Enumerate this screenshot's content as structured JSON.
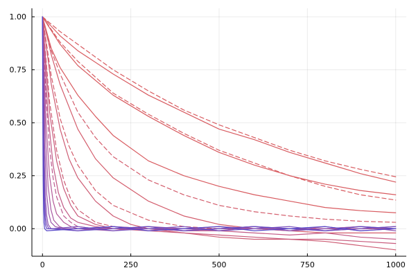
{
  "chart_data": {
    "type": "line",
    "title": "",
    "xlabel": "",
    "ylabel": "",
    "xlim": [
      -30,
      1030
    ],
    "ylim": [
      -0.13,
      1.04
    ],
    "grid": true,
    "legend": "none",
    "x_ticks": [
      0,
      250,
      500,
      750,
      1000
    ],
    "x_tick_labels": [
      "0",
      "250",
      "500",
      "750",
      "1000"
    ],
    "y_ticks": [
      0.0,
      0.25,
      0.5,
      0.75,
      1.0
    ],
    "y_tick_labels": [
      "0.00",
      "0.25",
      "0.50",
      "0.75",
      "1.00"
    ],
    "series": [
      {
        "color": "#d85a5f",
        "dash": true,
        "x": [
          0,
          50,
          100,
          200,
          300,
          400,
          500,
          600,
          700,
          800,
          900,
          1000
        ],
        "y": [
          1.0,
          0.93,
          0.87,
          0.75,
          0.65,
          0.56,
          0.49,
          0.43,
          0.37,
          0.32,
          0.28,
          0.245
        ]
      },
      {
        "color": "#d85a5f",
        "dash": false,
        "x": [
          0,
          50,
          100,
          200,
          300,
          400,
          500,
          600,
          700,
          800,
          900,
          1000
        ],
        "y": [
          1.0,
          0.91,
          0.84,
          0.73,
          0.63,
          0.55,
          0.47,
          0.42,
          0.36,
          0.31,
          0.26,
          0.22
        ]
      },
      {
        "color": "#d85a5f",
        "dash": true,
        "x": [
          0,
          50,
          100,
          200,
          300,
          400,
          500,
          600,
          700,
          800,
          900,
          1000
        ],
        "y": [
          1.0,
          0.88,
          0.79,
          0.64,
          0.54,
          0.45,
          0.37,
          0.31,
          0.25,
          0.2,
          0.16,
          0.135
        ]
      },
      {
        "color": "#d85a5f",
        "dash": false,
        "x": [
          0,
          50,
          100,
          200,
          300,
          400,
          500,
          600,
          700,
          800,
          900,
          1000
        ],
        "y": [
          1.0,
          0.87,
          0.77,
          0.63,
          0.53,
          0.44,
          0.36,
          0.3,
          0.25,
          0.21,
          0.18,
          0.16
        ]
      },
      {
        "color": "#d85a5f",
        "dash": false,
        "x": [
          0,
          25,
          50,
          100,
          150,
          200,
          300,
          400,
          500,
          600,
          700,
          800,
          900,
          1000
        ],
        "y": [
          1.0,
          0.85,
          0.76,
          0.63,
          0.53,
          0.44,
          0.32,
          0.25,
          0.2,
          0.16,
          0.13,
          0.1,
          0.085,
          0.075
        ]
      },
      {
        "color": "#d35c6b",
        "dash": true,
        "x": [
          0,
          25,
          50,
          100,
          150,
          200,
          300,
          400,
          500,
          600,
          700,
          800,
          900,
          1000
        ],
        "y": [
          1.0,
          0.84,
          0.73,
          0.55,
          0.43,
          0.34,
          0.23,
          0.16,
          0.11,
          0.08,
          0.06,
          0.045,
          0.035,
          0.03
        ]
      },
      {
        "color": "#d35c6b",
        "dash": false,
        "x": [
          0,
          25,
          50,
          100,
          150,
          200,
          300,
          400,
          500,
          600,
          700,
          800,
          900,
          1000
        ],
        "y": [
          1.0,
          0.82,
          0.68,
          0.47,
          0.33,
          0.24,
          0.13,
          0.06,
          0.02,
          0.0,
          -0.01,
          -0.02,
          -0.02,
          -0.02
        ]
      },
      {
        "color": "#d35c6b",
        "dash": true,
        "x": [
          0,
          25,
          50,
          75,
          100,
          150,
          200,
          300,
          400,
          500,
          600,
          800,
          1000
        ],
        "y": [
          1.0,
          0.72,
          0.52,
          0.39,
          0.3,
          0.18,
          0.11,
          0.04,
          0.01,
          0.0,
          0.0,
          0.0,
          0.0
        ]
      },
      {
        "color": "#cd5b73",
        "dash": false,
        "x": [
          0,
          25,
          50,
          75,
          100,
          150,
          200,
          250,
          300,
          400,
          500,
          600,
          700,
          800,
          900,
          1000
        ],
        "y": [
          1.0,
          0.68,
          0.47,
          0.33,
          0.24,
          0.13,
          0.06,
          0.02,
          0.0,
          -0.02,
          -0.04,
          -0.05,
          -0.05,
          -0.06,
          -0.08,
          -0.1
        ]
      },
      {
        "color": "#cd5b73",
        "dash": true,
        "x": [
          0,
          20,
          40,
          60,
          80,
          100,
          150,
          200,
          300,
          400,
          600,
          800,
          1000
        ],
        "y": [
          1.0,
          0.6,
          0.37,
          0.23,
          0.14,
          0.09,
          0.03,
          0.01,
          0.0,
          0.0,
          0.0,
          0.0,
          0.0
        ]
      },
      {
        "color": "#c85a7c",
        "dash": false,
        "x": [
          0,
          20,
          40,
          60,
          80,
          100,
          150,
          200,
          300,
          400,
          500,
          600,
          700,
          800,
          900,
          1000
        ],
        "y": [
          1.0,
          0.55,
          0.32,
          0.19,
          0.11,
          0.06,
          0.02,
          0.0,
          -0.01,
          -0.02,
          -0.03,
          -0.04,
          -0.05,
          -0.05,
          -0.06,
          -0.07
        ]
      },
      {
        "color": "#c25a86",
        "dash": false,
        "x": [
          0,
          15,
          30,
          45,
          60,
          80,
          100,
          150,
          200,
          300,
          400,
          500,
          600,
          700,
          800,
          900,
          1000
        ],
        "y": [
          1.0,
          0.55,
          0.3,
          0.17,
          0.1,
          0.05,
          0.03,
          0.01,
          0.0,
          0.0,
          -0.01,
          -0.01,
          -0.02,
          -0.03,
          -0.02,
          -0.04,
          -0.05
        ]
      },
      {
        "color": "#bb5a90",
        "dash": true,
        "x": [
          0,
          10,
          20,
          30,
          40,
          60,
          80,
          100,
          150,
          200,
          400,
          600,
          800,
          1000
        ],
        "y": [
          1.0,
          0.62,
          0.38,
          0.24,
          0.15,
          0.06,
          0.03,
          0.01,
          0.0,
          0.0,
          0.0,
          0.0,
          0.0,
          0.0
        ]
      },
      {
        "color": "#b35a98",
        "dash": false,
        "x": [
          0,
          10,
          20,
          30,
          40,
          60,
          80,
          100,
          200,
          300,
          400,
          500,
          600,
          700,
          800,
          900,
          1000
        ],
        "y": [
          1.0,
          0.5,
          0.25,
          0.13,
          0.07,
          0.03,
          0.01,
          0.0,
          0.0,
          0.01,
          -0.01,
          0.0,
          0.01,
          -0.01,
          0.0,
          0.01,
          0.0
        ]
      },
      {
        "color": "#a858a2",
        "dash": false,
        "x": [
          0,
          8,
          16,
          24,
          32,
          48,
          64,
          100,
          200,
          300,
          400,
          500,
          600,
          700,
          800,
          900,
          1000
        ],
        "y": [
          1.0,
          0.45,
          0.2,
          0.09,
          0.04,
          0.01,
          0.0,
          0.0,
          0.01,
          -0.01,
          0.0,
          0.01,
          0.0,
          -0.01,
          0.01,
          -0.01,
          0.0
        ]
      },
      {
        "color": "#9c56aa",
        "dash": false,
        "x": [
          0,
          6,
          12,
          18,
          24,
          36,
          60,
          100,
          200,
          300,
          400,
          500,
          600,
          700,
          800,
          900,
          1000
        ],
        "y": [
          1.0,
          0.4,
          0.16,
          0.07,
          0.03,
          0.01,
          0.0,
          0.0,
          -0.01,
          0.01,
          0.0,
          -0.01,
          0.01,
          0.0,
          -0.01,
          0.0,
          0.01
        ]
      },
      {
        "color": "#8b52b2",
        "dash": false,
        "x": [
          0,
          4,
          8,
          12,
          16,
          24,
          40,
          100,
          200,
          300,
          400,
          500,
          600,
          700,
          800,
          900,
          1000
        ],
        "y": [
          1.0,
          0.4,
          0.15,
          0.06,
          0.02,
          0.0,
          0.0,
          -0.01,
          0.01,
          0.0,
          -0.01,
          0.0,
          0.01,
          -0.01,
          0.0,
          0.01,
          -0.01
        ]
      },
      {
        "color": "#784ebb",
        "dash": false,
        "x": [
          0,
          3,
          6,
          9,
          12,
          18,
          30,
          100,
          200,
          300,
          400,
          500,
          600,
          700,
          800,
          900,
          1000
        ],
        "y": [
          1.0,
          0.4,
          0.14,
          0.05,
          0.02,
          0.0,
          0.0,
          0.01,
          -0.01,
          0.0,
          0.01,
          -0.01,
          0.0,
          0.01,
          -0.01,
          0.0,
          0.01
        ]
      },
      {
        "color": "#6649c2",
        "dash": false,
        "x": [
          0,
          2,
          4,
          6,
          8,
          12,
          20,
          100,
          200,
          300,
          400,
          500,
          600,
          700,
          800,
          900,
          1000
        ],
        "y": [
          1.0,
          0.45,
          0.18,
          0.07,
          0.02,
          0.0,
          0.0,
          -0.01,
          0.0,
          0.01,
          -0.01,
          0.0,
          0.01,
          0.0,
          -0.01,
          0.01,
          0.0
        ]
      },
      {
        "color": "#5545c8",
        "dash": false,
        "x": [
          0,
          1,
          2,
          3,
          4,
          6,
          12,
          100,
          200,
          300,
          400,
          500,
          600,
          700,
          800,
          900,
          1000
        ],
        "y": [
          1.0,
          0.5,
          0.22,
          0.09,
          0.03,
          0.0,
          -0.01,
          0.0,
          0.01,
          -0.01,
          0.0,
          0.01,
          -0.01,
          0.0,
          0.01,
          -0.01,
          0.0
        ]
      }
    ]
  }
}
